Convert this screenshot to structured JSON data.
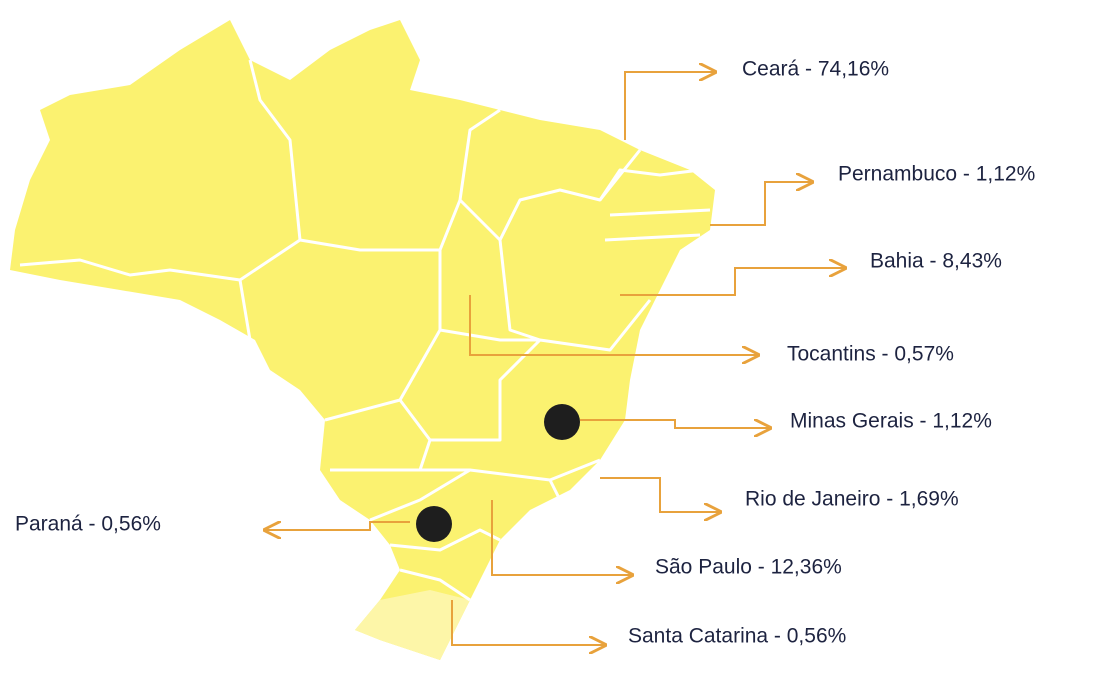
{
  "labels": [
    "Ceará - 74,16%",
    "Pernambuco - 1,12%",
    "Bahia - 8,43%",
    "Tocantins - 0,57%",
    "Minas Gerais - 1,12%",
    "Rio de Janeiro - 1,69%",
    "Paraná - 0,56%",
    "São Paulo - 12,36%",
    "Santa Catarina - 0,56%"
  ]
}
